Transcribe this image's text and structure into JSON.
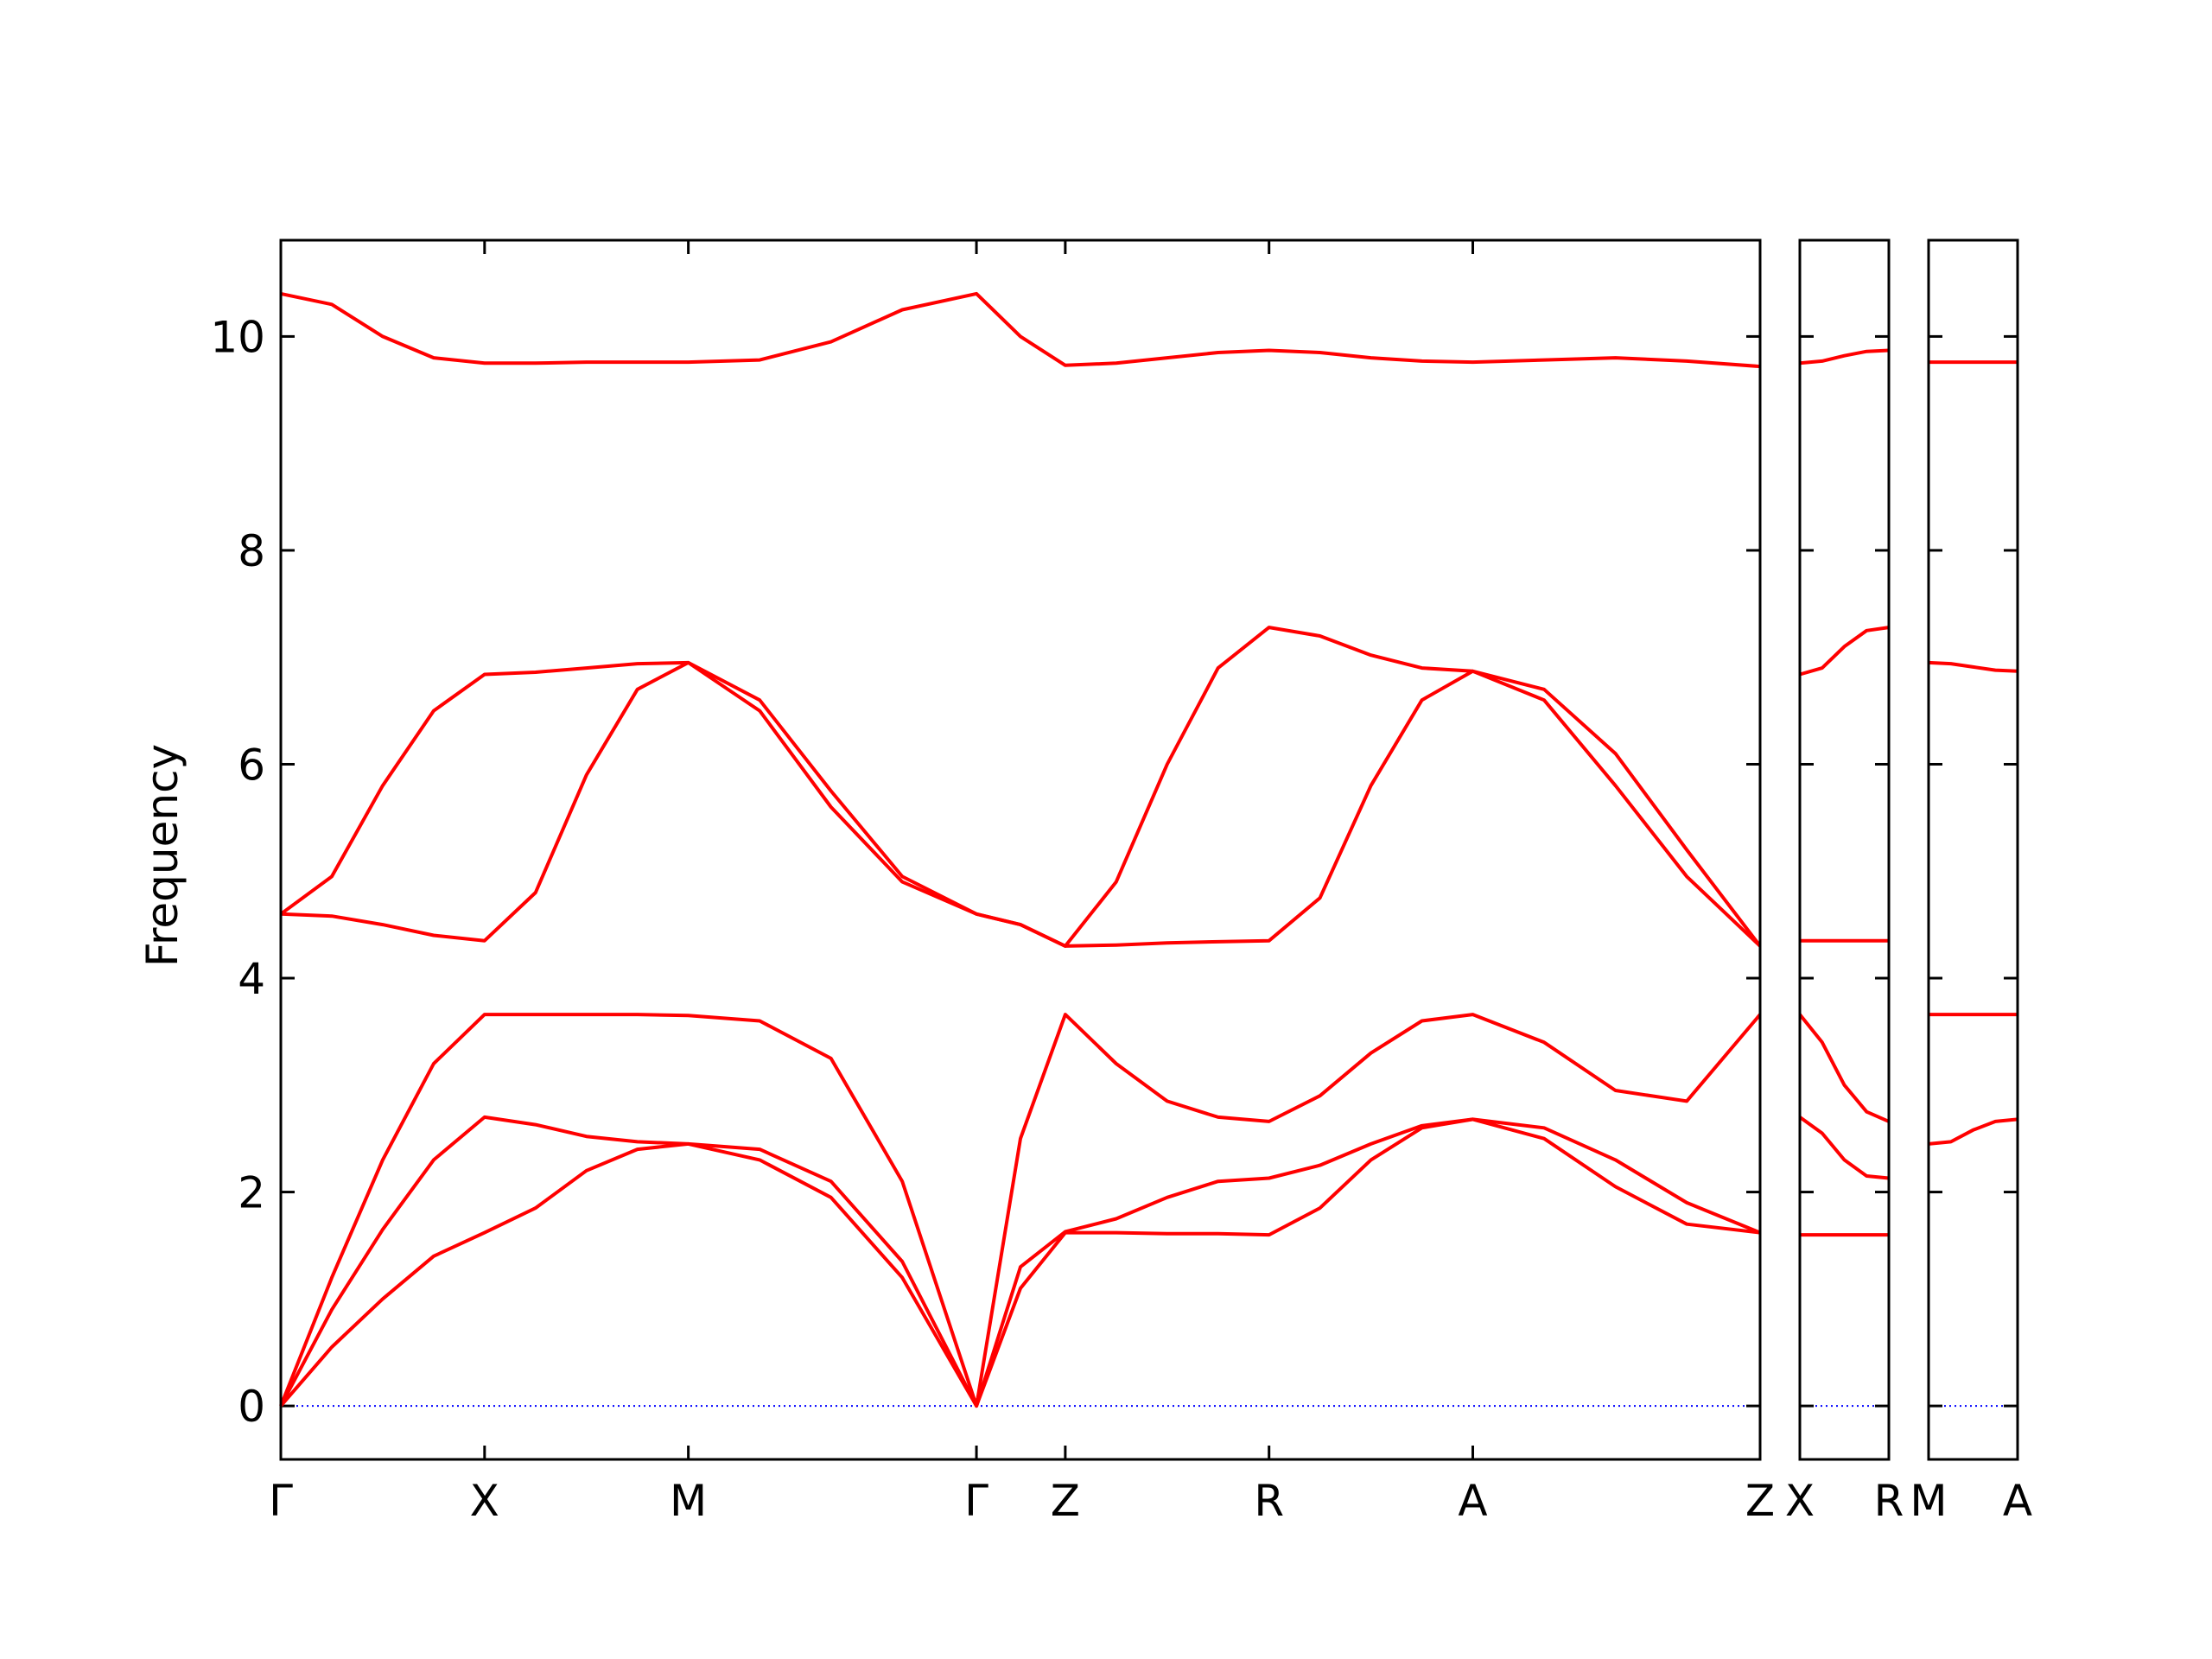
{
  "chart_data": [
    {
      "type": "line",
      "ylabel": "Frequency",
      "color": "#ff0000",
      "hline": {
        "y": 0,
        "color": "#0000ff"
      },
      "xlim": [
        0,
        7.26
      ],
      "ylim": [
        -0.5,
        10.9
      ],
      "yticks": [
        0,
        2,
        4,
        6,
        8,
        10
      ],
      "xticks": [
        {
          "value": 0,
          "label": "Γ"
        },
        {
          "value": 1,
          "label": "X"
        },
        {
          "value": 2,
          "label": "M"
        },
        {
          "value": 3.414,
          "label": "Γ"
        },
        {
          "value": 3.85,
          "label": "Z"
        },
        {
          "value": 4.85,
          "label": "R"
        },
        {
          "value": 5.85,
          "label": "A"
        },
        {
          "value": 7.26,
          "label": "Z"
        }
      ],
      "x": [
        0,
        0.25,
        0.5,
        0.75,
        1,
        1.25,
        1.5,
        1.75,
        2,
        2.35,
        2.7,
        3.05,
        3.414,
        3.63,
        3.85,
        4.1,
        4.35,
        4.6,
        4.85,
        5.1,
        5.35,
        5.6,
        5.85,
        6.2,
        6.55,
        6.9,
        7.26
      ],
      "series": [
        {
          "values": [
            0,
            0.55,
            1.0,
            1.4,
            1.62,
            1.85,
            2.2,
            2.4,
            2.45,
            2.3,
            1.95,
            1.2,
            0,
            1.1,
            1.62,
            1.62,
            1.61,
            1.61,
            1.6,
            1.85,
            2.3,
            2.6,
            2.68,
            2.5,
            2.05,
            1.7,
            1.62
          ]
        },
        {
          "values": [
            0,
            0.9,
            1.65,
            2.3,
            2.7,
            2.63,
            2.52,
            2.47,
            2.45,
            2.4,
            2.1,
            1.35,
            0,
            1.3,
            1.63,
            1.75,
            1.95,
            2.1,
            2.13,
            2.25,
            2.45,
            2.62,
            2.68,
            2.6,
            2.3,
            1.9,
            1.62
          ]
        },
        {
          "values": [
            0,
            1.2,
            2.3,
            3.2,
            3.66,
            3.66,
            3.66,
            3.66,
            3.65,
            3.6,
            3.25,
            2.1,
            0,
            2.5,
            3.66,
            3.2,
            2.85,
            2.7,
            2.66,
            2.9,
            3.3,
            3.6,
            3.66,
            3.4,
            2.95,
            2.85,
            3.66
          ]
        },
        {
          "values": [
            4.6,
            4.58,
            4.5,
            4.4,
            4.35,
            4.8,
            5.9,
            6.7,
            6.95,
            6.5,
            5.6,
            4.9,
            4.6,
            4.5,
            4.3,
            4.31,
            4.33,
            4.34,
            4.35,
            4.75,
            5.8,
            6.6,
            6.87,
            6.6,
            5.8,
            4.95,
            4.3
          ]
        },
        {
          "values": [
            4.6,
            4.95,
            5.8,
            6.5,
            6.84,
            6.86,
            6.9,
            6.94,
            6.95,
            6.6,
            5.75,
            4.95,
            4.6,
            4.5,
            4.3,
            4.9,
            6.0,
            6.9,
            7.28,
            7.2,
            7.02,
            6.9,
            6.87,
            6.7,
            6.1,
            5.2,
            4.3
          ]
        },
        {
          "values": [
            10.4,
            10.3,
            10.0,
            9.8,
            9.75,
            9.75,
            9.76,
            9.76,
            9.76,
            9.78,
            9.95,
            10.25,
            10.4,
            10.0,
            9.73,
            9.75,
            9.8,
            9.85,
            9.87,
            9.85,
            9.8,
            9.77,
            9.76,
            9.78,
            9.8,
            9.77,
            9.72
          ]
        }
      ]
    },
    {
      "type": "line",
      "xlim": [
        0,
        0.44
      ],
      "ylim": [
        -0.5,
        10.9
      ],
      "xticks": [
        {
          "value": 0,
          "label": "X"
        },
        {
          "value": 0.44,
          "label": "R"
        }
      ],
      "x": [
        0,
        0.11,
        0.22,
        0.33,
        0.44
      ],
      "series": [
        {
          "values": [
            1.6,
            1.6,
            1.6,
            1.6,
            1.6
          ]
        },
        {
          "values": [
            2.7,
            2.55,
            2.3,
            2.15,
            2.13
          ]
        },
        {
          "values": [
            3.66,
            3.4,
            3.0,
            2.75,
            2.66
          ]
        },
        {
          "values": [
            4.35,
            4.35,
            4.35,
            4.35,
            4.35
          ]
        },
        {
          "values": [
            6.84,
            6.9,
            7.1,
            7.25,
            7.28
          ]
        },
        {
          "values": [
            9.75,
            9.77,
            9.82,
            9.86,
            9.87
          ]
        }
      ]
    },
    {
      "type": "line",
      "xlim": [
        0,
        0.44
      ],
      "ylim": [
        -0.5,
        10.9
      ],
      "xticks": [
        {
          "value": 0,
          "label": "M"
        },
        {
          "value": 0.44,
          "label": "A"
        }
      ],
      "x": [
        0,
        0.11,
        0.22,
        0.33,
        0.44
      ],
      "series": [
        {
          "values": [
            2.45,
            2.47,
            2.58,
            2.66,
            2.68
          ]
        },
        {
          "values": [
            3.66,
            3.66,
            3.66,
            3.66,
            3.66
          ]
        },
        {
          "values": [
            6.95,
            6.94,
            6.91,
            6.88,
            6.87
          ]
        },
        {
          "values": [
            9.76,
            9.76,
            9.76,
            9.76,
            9.76
          ]
        }
      ]
    }
  ]
}
